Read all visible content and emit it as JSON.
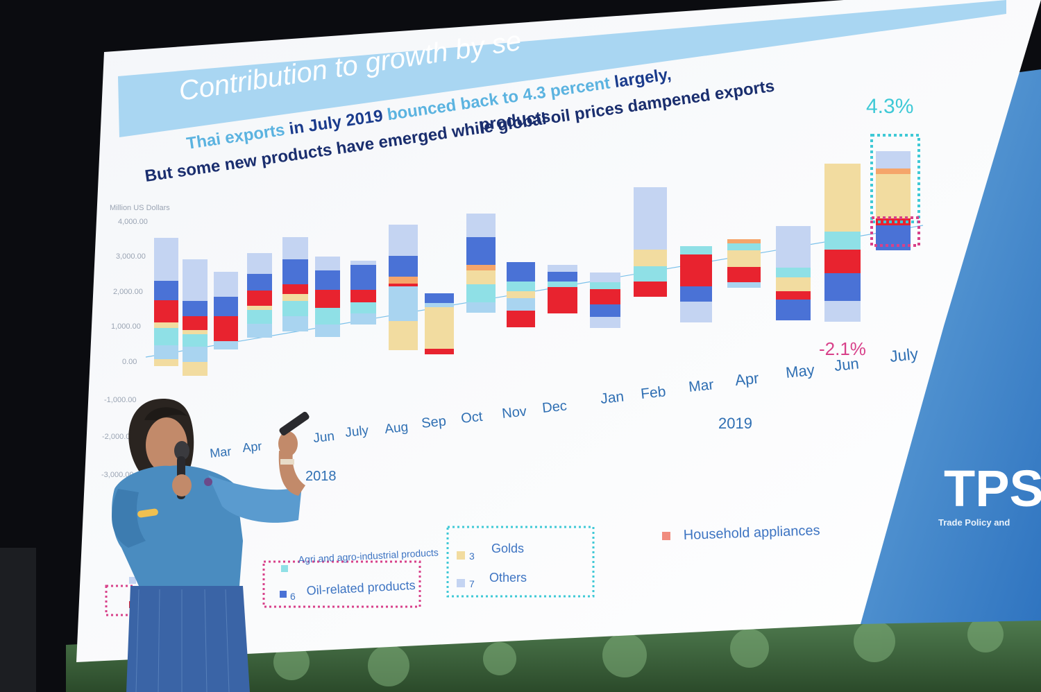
{
  "slide": {
    "title": "Contribution to growth by se",
    "subtitle_line1_prefix": "Thai exports",
    "subtitle_line1_mid": " in July 2019 ",
    "subtitle_line1_highlight": "bounced back to 4.3 percent",
    "subtitle_line1_suffix": " largely,",
    "subtitle_line2": "But some new products have emerged while global oil prices dampened exports",
    "subtitle_line3": "products.",
    "logo_text": "TPS",
    "logo_subtext": "Trade Policy and"
  },
  "chart_data": {
    "type": "bar",
    "stacked": true,
    "ylabel": "Million US Dollars",
    "yticks": [
      "4,000.00",
      "3,000.00",
      "2,000.00",
      "1,000.00",
      "0.00",
      "-1,000.00",
      "-2,000.00",
      "-3,000.00"
    ],
    "categories": [
      "Mar",
      "Apr",
      "May",
      "Jun",
      "July",
      "Aug",
      "Sep",
      "Oct",
      "Nov",
      "Dec",
      "Jan",
      "Feb",
      "Mar",
      "Apr",
      "May",
      "Jun",
      "July"
    ],
    "year_labels": [
      "2018",
      "2019"
    ],
    "annotations": {
      "jul_growth": "4.3%",
      "jun_growth": "-2.1%"
    },
    "legend": [
      {
        "name": "Agri and agro-industrial products",
        "color": "#8fe0e6"
      },
      {
        "name": "Golds",
        "prefix": "3",
        "color": "#f2dca0"
      },
      {
        "name": "Household appliances",
        "color": "#f08c7e"
      },
      {
        "name": "Oil-related products",
        "prefix": "6",
        "color": "#4a72d6"
      },
      {
        "name": "Others",
        "prefix": "7",
        "color": "#c4d4f2"
      }
    ],
    "colors": {
      "others": "#c4d4f2",
      "oil": "#4a72d6",
      "red": "#e8232f",
      "gold": "#f2dca0",
      "agri": "#8fe0e6",
      "lightblue": "#a9d4f0",
      "orange": "#f5a56a"
    }
  }
}
